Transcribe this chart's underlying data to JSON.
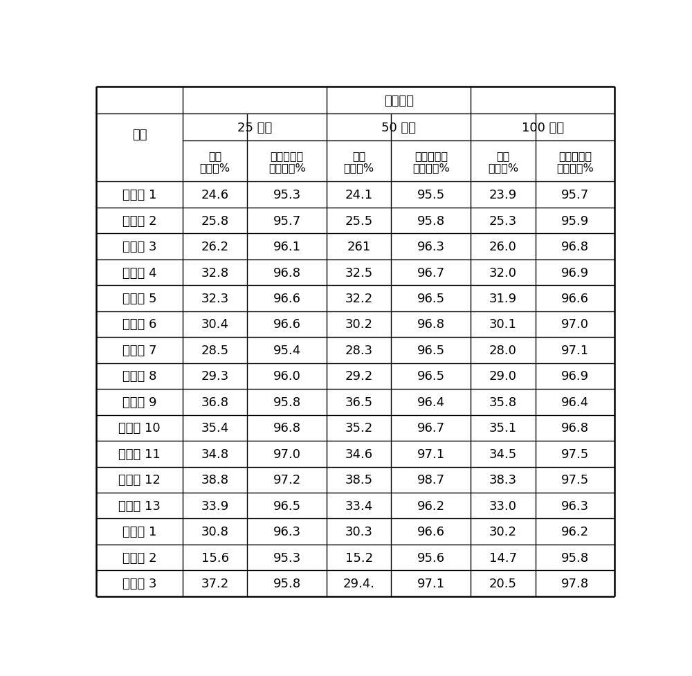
{
  "title_main": "反应时间",
  "header_biaohao": "编号",
  "header_25": "25 小时",
  "header_50": "50 小时",
  "header_100": "100 小时",
  "sub_col_labels": [
    "甲醇\n利用率%",
    "苯乙烯乙苯\n总选择性%",
    "甲醇\n利用率%",
    "苯乙烯乙苯\n总选择性%",
    "甲醇\n利用率%",
    "苯乙烯乙苯\n总选择性%"
  ],
  "row_labels": [
    "实施例 1",
    "实施例 2",
    "实施例 3",
    "实施例 4",
    "实施例 5",
    "实施例 6",
    "实施例 7",
    "实施例 8",
    "实施例 9",
    "实施例 10",
    "实施例 11",
    "实施例 12",
    "实施例 13",
    "对比例 1",
    "对比例 2",
    "对比例 3"
  ],
  "data": [
    [
      "24.6",
      "95.3",
      "24.1",
      "95.5",
      "23.9",
      "95.7"
    ],
    [
      "25.8",
      "95.7",
      "25.5",
      "95.8",
      "25.3",
      "95.9"
    ],
    [
      "26.2",
      "96.1",
      "261",
      "96.3",
      "26.0",
      "96.8"
    ],
    [
      "32.8",
      "96.8",
      "32.5",
      "96.7",
      "32.0",
      "96.9"
    ],
    [
      "32.3",
      "96.6",
      "32.2",
      "96.5",
      "31.9",
      "96.6"
    ],
    [
      "30.4",
      "96.6",
      "30.2",
      "96.8",
      "30.1",
      "97.0"
    ],
    [
      "28.5",
      "95.4",
      "28.3",
      "96.5",
      "28.0",
      "97.1"
    ],
    [
      "29.3",
      "96.0",
      "29.2",
      "96.5",
      "29.0",
      "96.9"
    ],
    [
      "36.8",
      "95.8",
      "36.5",
      "96.4",
      "35.8",
      "96.4"
    ],
    [
      "35.4",
      "96.8",
      "35.2",
      "96.7",
      "35.1",
      "96.8"
    ],
    [
      "34.8",
      "97.0",
      "34.6",
      "97.1",
      "34.5",
      "97.5"
    ],
    [
      "38.8",
      "97.2",
      "38.5",
      "98.7",
      "38.3",
      "97.5"
    ],
    [
      "33.9",
      "96.5",
      "33.4",
      "96.2",
      "33.0",
      "96.3"
    ],
    [
      "30.8",
      "96.3",
      "30.3",
      "96.6",
      "30.2",
      "96.2"
    ],
    [
      "15.6",
      "95.3",
      "15.2",
      "95.6",
      "14.7",
      "95.8"
    ],
    [
      "37.2",
      "95.8",
      "29.4.",
      "97.1",
      "20.5",
      "97.8"
    ]
  ],
  "bg_color": "#ffffff",
  "line_color": "#000000",
  "text_color": "#000000",
  "fig_width": 10.0,
  "fig_height": 9.78,
  "dpi": 100
}
